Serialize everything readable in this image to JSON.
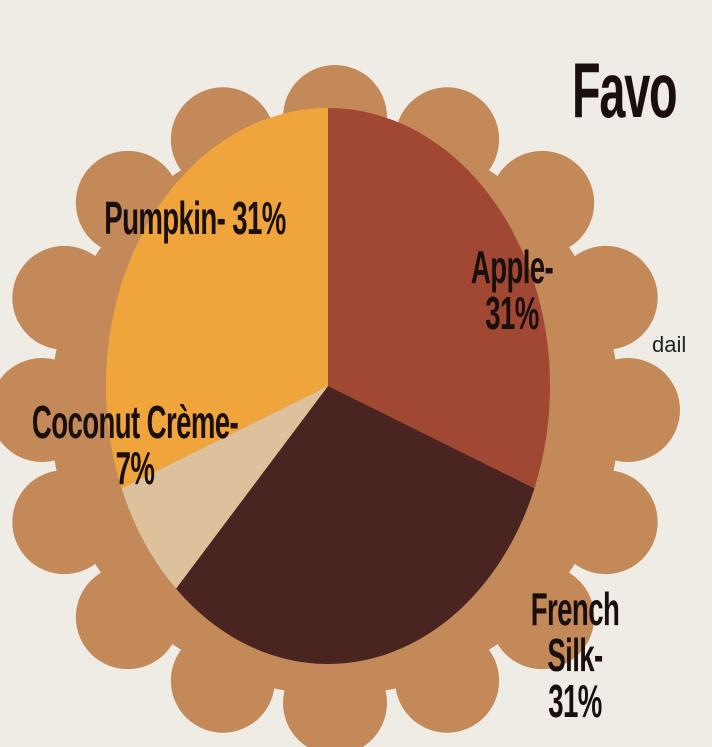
{
  "chart_data": {
    "type": "pie",
    "title": "Favo",
    "text_fragment": "dail",
    "categories": [
      "Apple",
      "French Silk",
      "Coconut Crème",
      "Pumpkin"
    ],
    "values": [
      31,
      31,
      7,
      31
    ],
    "value_labels": [
      "Apple- 31%",
      "French Silk- 31%",
      "Coconut Crème-\n7%",
      "Pumpkin- 31%"
    ],
    "colors": [
      "#a04833",
      "#4a2421",
      "#dcc19c",
      "#f0a53c"
    ]
  }
}
